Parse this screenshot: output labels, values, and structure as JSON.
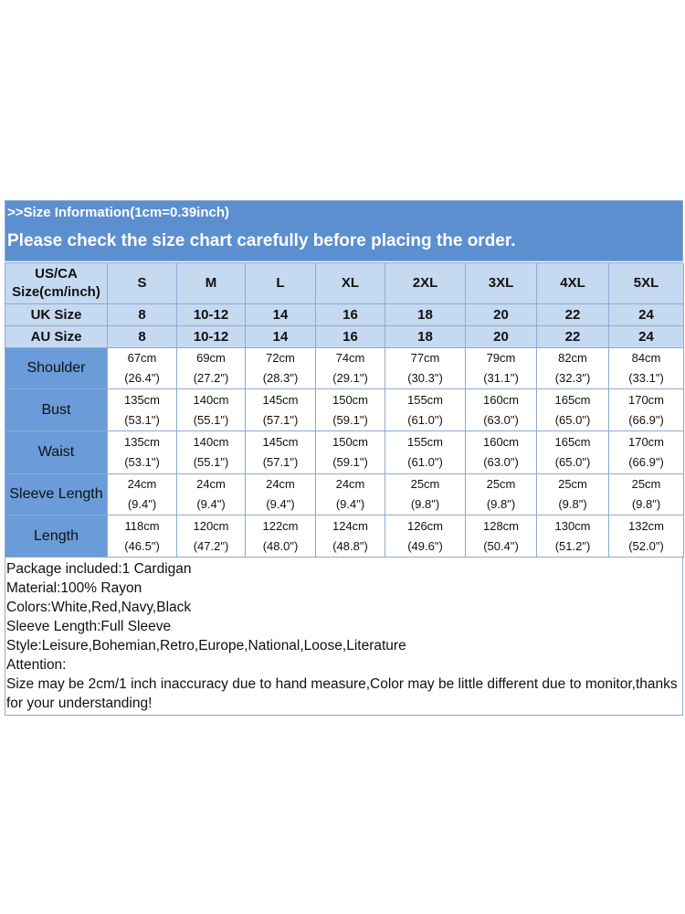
{
  "header": {
    "line1": ">>Size Information(1cm=0.39inch)",
    "line2": "Please check the size chart carefully before placing the order."
  },
  "table": {
    "header": [
      "US/CA Size(cm/inch)",
      "S",
      "M",
      "L",
      "XL",
      "2XL",
      "3XL",
      "4XL",
      "5XL"
    ],
    "size_rows": [
      {
        "label": "UK Size",
        "cells": [
          "8",
          "10-12",
          "14",
          "16",
          "18",
          "20",
          "22",
          "24"
        ]
      },
      {
        "label": "AU Size",
        "cells": [
          "8",
          "10-12",
          "14",
          "16",
          "18",
          "20",
          "22",
          "24"
        ]
      }
    ],
    "measure_rows": [
      {
        "label": "Shoulder",
        "cells": [
          {
            "cm": "67cm",
            "inch": "(26.4\")"
          },
          {
            "cm": "69cm",
            "inch": "(27.2\")"
          },
          {
            "cm": "72cm",
            "inch": "(28.3\")"
          },
          {
            "cm": "74cm",
            "inch": "(29.1\")"
          },
          {
            "cm": "77cm",
            "inch": "(30.3\")"
          },
          {
            "cm": "79cm",
            "inch": "(31.1\")"
          },
          {
            "cm": "82cm",
            "inch": "(32.3\")"
          },
          {
            "cm": "84cm",
            "inch": "(33.1\")"
          }
        ]
      },
      {
        "label": "Bust",
        "cells": [
          {
            "cm": "135cm",
            "inch": "(53.1\")"
          },
          {
            "cm": "140cm",
            "inch": "(55.1\")"
          },
          {
            "cm": "145cm",
            "inch": "(57.1\")"
          },
          {
            "cm": "150cm",
            "inch": "(59.1\")"
          },
          {
            "cm": "155cm",
            "inch": "(61.0\")"
          },
          {
            "cm": "160cm",
            "inch": "(63.0\")"
          },
          {
            "cm": "165cm",
            "inch": "(65.0\")"
          },
          {
            "cm": "170cm",
            "inch": "(66.9\")"
          }
        ]
      },
      {
        "label": "Waist",
        "cells": [
          {
            "cm": "135cm",
            "inch": "(53.1\")"
          },
          {
            "cm": "140cm",
            "inch": "(55.1\")"
          },
          {
            "cm": "145cm",
            "inch": "(57.1\")"
          },
          {
            "cm": "150cm",
            "inch": "(59.1\")"
          },
          {
            "cm": "155cm",
            "inch": "(61.0\")"
          },
          {
            "cm": "160cm",
            "inch": "(63.0\")"
          },
          {
            "cm": "165cm",
            "inch": "(65.0\")"
          },
          {
            "cm": "170cm",
            "inch": "(66.9\")"
          }
        ]
      },
      {
        "label": "Sleeve Length",
        "cells": [
          {
            "cm": "24cm",
            "inch": "(9.4\")"
          },
          {
            "cm": "24cm",
            "inch": "(9.4\")"
          },
          {
            "cm": "24cm",
            "inch": "(9.4\")"
          },
          {
            "cm": "24cm",
            "inch": "(9.4\")"
          },
          {
            "cm": "25cm",
            "inch": "(9.8\")"
          },
          {
            "cm": "25cm",
            "inch": "(9.8\")"
          },
          {
            "cm": "25cm",
            "inch": "(9.8\")"
          },
          {
            "cm": "25cm",
            "inch": "(9.8\")"
          }
        ]
      },
      {
        "label": "Length",
        "cells": [
          {
            "cm": "118cm",
            "inch": "(46.5\")"
          },
          {
            "cm": "120cm",
            "inch": "(47.2\")"
          },
          {
            "cm": "122cm",
            "inch": "(48.0\")"
          },
          {
            "cm": "124cm",
            "inch": "(48.8\")"
          },
          {
            "cm": "126cm",
            "inch": "(49.6\")"
          },
          {
            "cm": "128cm",
            "inch": "(50.4\")"
          },
          {
            "cm": "130cm",
            "inch": "(51.2\")"
          },
          {
            "cm": "132cm",
            "inch": "(52.0\")"
          }
        ]
      }
    ]
  },
  "notes": [
    "Package included:1 Cardigan",
    "Material:100% Rayon",
    "Colors:White,Red,Navy,Black",
    "Sleeve Length:Full Sleeve",
    "Style:Leisure,Bohemian,Retro,Europe,National,Loose,Literature",
    "Attention:",
    "Size may be 2cm/1 inch inaccuracy due to hand measure,Color may be little different due to monitor,thanks for your understanding!"
  ]
}
